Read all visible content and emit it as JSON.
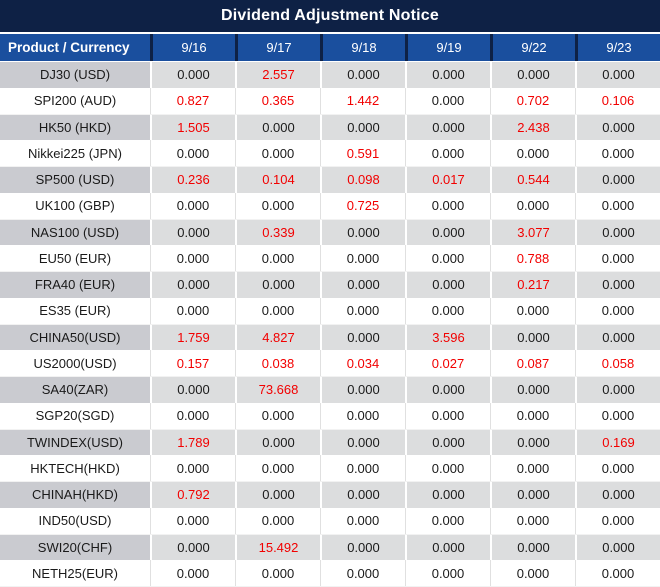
{
  "title": "Dividend Adjustment Notice",
  "colors": {
    "title_bg": "#0e2145",
    "header_bg": "#1a4f9e",
    "header_divider": "#0e2145",
    "gray_row_label_bg": "#cacbd0",
    "gray_row_cell_bg": "#dcddde",
    "white_row_bg": "#ffffff",
    "positive_value_text": "#f20000",
    "zero_value_text": "#1a1a1a",
    "header_text": "#ffffff"
  },
  "table": {
    "label_header": "Product / Currency",
    "date_headers": [
      "9/16",
      "9/17",
      "9/18",
      "9/19",
      "9/22",
      "9/23"
    ],
    "rows": [
      {
        "label": "DJ30 (USD)",
        "values": [
          "0.000",
          "2.557",
          "0.000",
          "0.000",
          "0.000",
          "0.000"
        ]
      },
      {
        "label": "SPI200 (AUD)",
        "values": [
          "0.827",
          "0.365",
          "1.442",
          "0.000",
          "0.702",
          "0.106"
        ]
      },
      {
        "label": "HK50 (HKD)",
        "values": [
          "1.505",
          "0.000",
          "0.000",
          "0.000",
          "2.438",
          "0.000"
        ]
      },
      {
        "label": "Nikkei225 (JPN)",
        "values": [
          "0.000",
          "0.000",
          "0.591",
          "0.000",
          "0.000",
          "0.000"
        ]
      },
      {
        "label": "SP500 (USD)",
        "values": [
          "0.236",
          "0.104",
          "0.098",
          "0.017",
          "0.544",
          "0.000"
        ]
      },
      {
        "label": "UK100 (GBP)",
        "values": [
          "0.000",
          "0.000",
          "0.725",
          "0.000",
          "0.000",
          "0.000"
        ]
      },
      {
        "label": "NAS100 (USD)",
        "values": [
          "0.000",
          "0.339",
          "0.000",
          "0.000",
          "3.077",
          "0.000"
        ]
      },
      {
        "label": "EU50 (EUR)",
        "values": [
          "0.000",
          "0.000",
          "0.000",
          "0.000",
          "0.788",
          "0.000"
        ]
      },
      {
        "label": "FRA40 (EUR)",
        "values": [
          "0.000",
          "0.000",
          "0.000",
          "0.000",
          "0.217",
          "0.000"
        ]
      },
      {
        "label": "ES35 (EUR)",
        "values": [
          "0.000",
          "0.000",
          "0.000",
          "0.000",
          "0.000",
          "0.000"
        ]
      },
      {
        "label": "CHINA50(USD)",
        "values": [
          "1.759",
          "4.827",
          "0.000",
          "3.596",
          "0.000",
          "0.000"
        ]
      },
      {
        "label": "US2000(USD)",
        "values": [
          "0.157",
          "0.038",
          "0.034",
          "0.027",
          "0.087",
          "0.058"
        ]
      },
      {
        "label": "SA40(ZAR)",
        "values": [
          "0.000",
          "73.668",
          "0.000",
          "0.000",
          "0.000",
          "0.000"
        ]
      },
      {
        "label": "SGP20(SGD)",
        "values": [
          "0.000",
          "0.000",
          "0.000",
          "0.000",
          "0.000",
          "0.000"
        ]
      },
      {
        "label": "TWINDEX(USD)",
        "values": [
          "1.789",
          "0.000",
          "0.000",
          "0.000",
          "0.000",
          "0.169"
        ]
      },
      {
        "label": "HKTECH(HKD)",
        "values": [
          "0.000",
          "0.000",
          "0.000",
          "0.000",
          "0.000",
          "0.000"
        ]
      },
      {
        "label": "CHINAH(HKD)",
        "values": [
          "0.792",
          "0.000",
          "0.000",
          "0.000",
          "0.000",
          "0.000"
        ]
      },
      {
        "label": "IND50(USD)",
        "values": [
          "0.000",
          "0.000",
          "0.000",
          "0.000",
          "0.000",
          "0.000"
        ]
      },
      {
        "label": "SWI20(CHF)",
        "values": [
          "0.000",
          "15.492",
          "0.000",
          "0.000",
          "0.000",
          "0.000"
        ]
      },
      {
        "label": "NETH25(EUR)",
        "values": [
          "0.000",
          "0.000",
          "0.000",
          "0.000",
          "0.000",
          "0.000"
        ]
      }
    ]
  }
}
